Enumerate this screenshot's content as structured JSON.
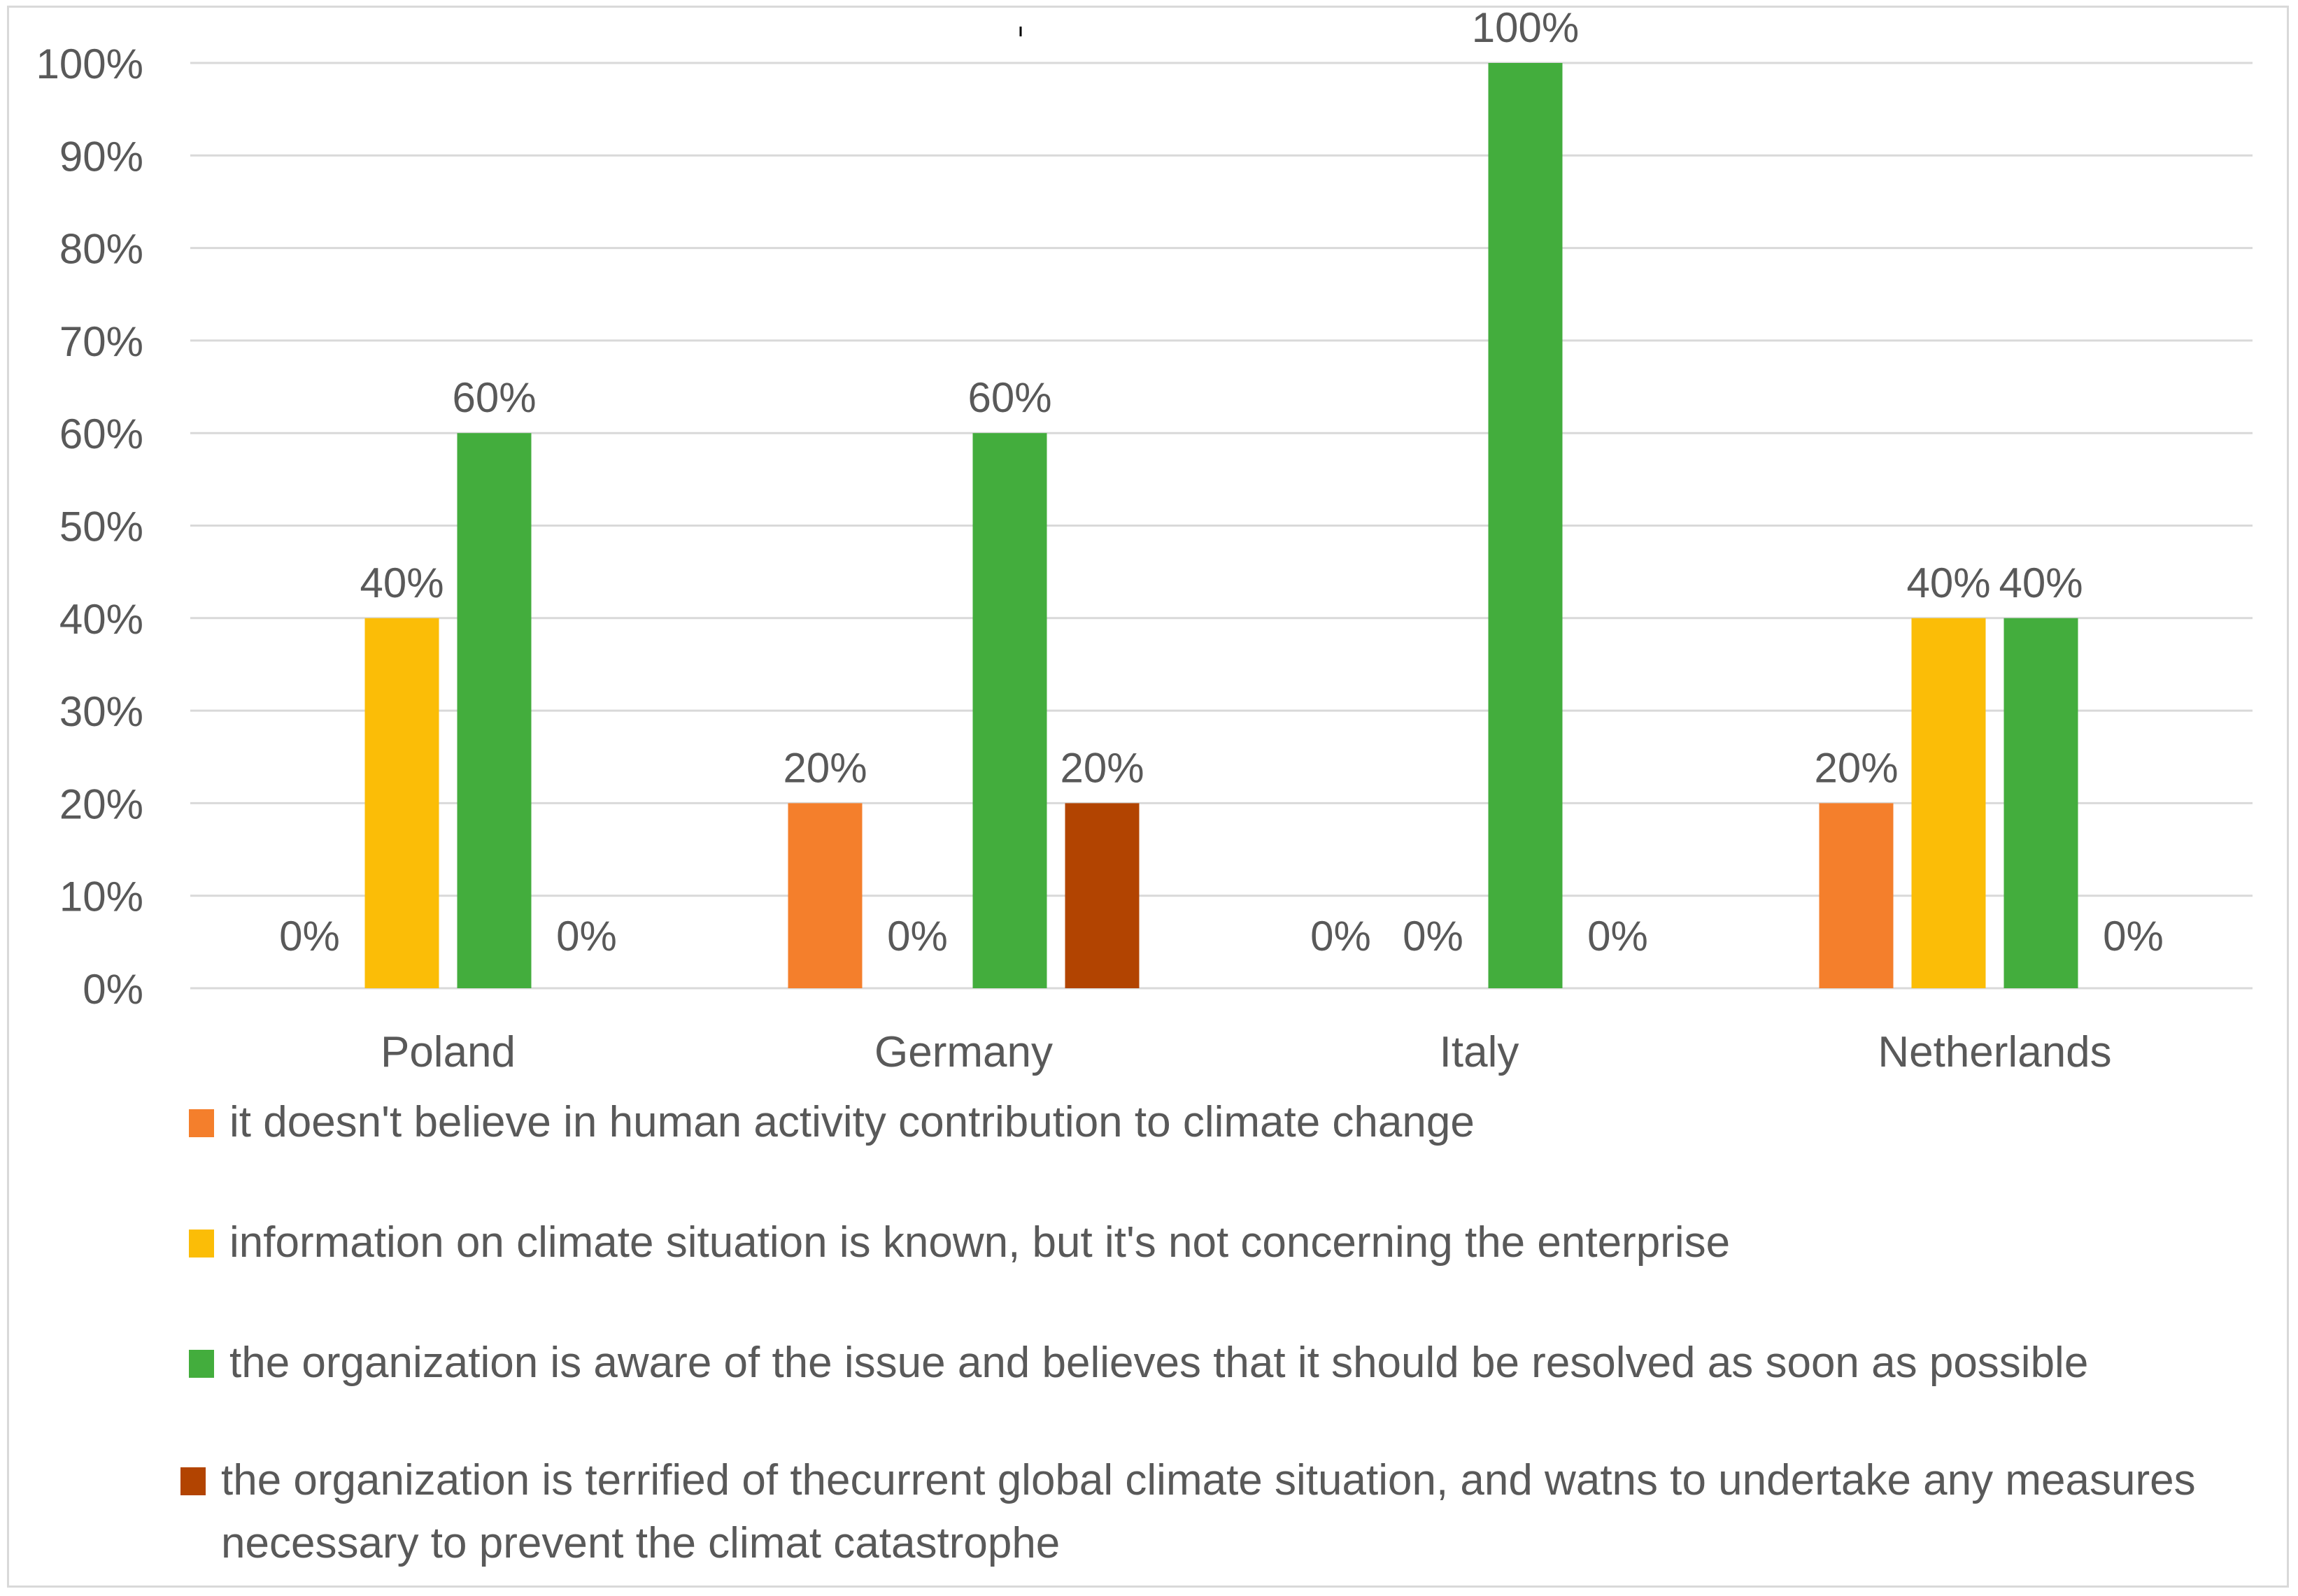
{
  "chart_data": {
    "type": "bar",
    "title": "",
    "xlabel": "",
    "ylabel": "",
    "ylim": [
      0,
      100
    ],
    "y_ticks": [
      "0%",
      "10%",
      "20%",
      "30%",
      "40%",
      "50%",
      "60%",
      "70%",
      "80%",
      "90%",
      "100%"
    ],
    "grid": true,
    "legend_position": "bottom",
    "categories": [
      "Poland",
      "Germany",
      "Italy",
      "Netherlands"
    ],
    "series": [
      {
        "name": "it doesn't believe in human activity contribution to climate change",
        "color": "#f47f2c",
        "values": [
          0,
          20,
          0,
          20
        ],
        "labels": [
          "0%",
          "20%",
          "0%",
          "20%"
        ]
      },
      {
        "name": "information on climate situation is known,  but it's not concerning the enterprise",
        "color": "#fbbd07",
        "values": [
          40,
          0,
          0,
          40
        ],
        "labels": [
          "40%",
          "0%",
          "0%",
          "40%"
        ]
      },
      {
        "name": "the organization is aware of the issue and  believes that it should be resolved as soon as possible",
        "color": "#43ad3d",
        "values": [
          60,
          60,
          100,
          40
        ],
        "labels": [
          "60%",
          "60%",
          "100%",
          "40%"
        ]
      },
      {
        "name": "the organization is terrified of thecurrent global climate situation, and watns to undertake any measures necessary to prevent the climat catastrophe",
        "color": "#b24401",
        "values": [
          0,
          20,
          0,
          0
        ],
        "labels": [
          "0%",
          "20%",
          "0%",
          "0%"
        ]
      }
    ]
  },
  "colors": {
    "text": "#595959",
    "gridline": "#d9d9d9",
    "border": "#d9d9d9"
  }
}
